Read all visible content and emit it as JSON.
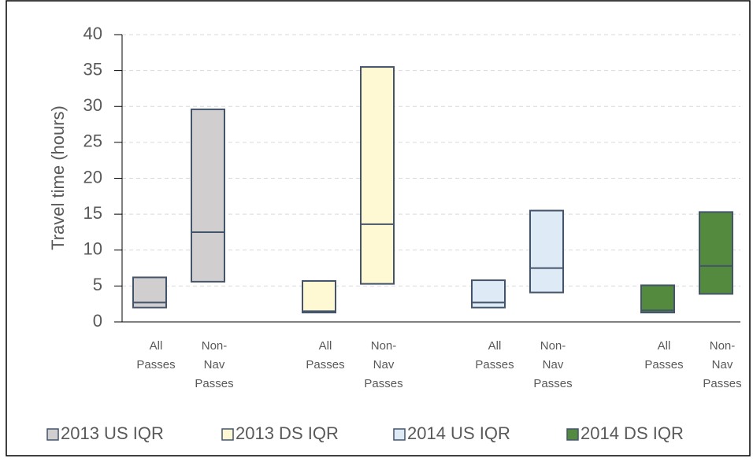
{
  "chart_data": {
    "type": "floating-box",
    "y_label": "Travel time (hours)",
    "categories": [
      "All Passes",
      "Non-Nav Passes"
    ],
    "ylim": [
      0,
      40
    ],
    "yticks": [
      0,
      5,
      10,
      15,
      20,
      25,
      30,
      35,
      40
    ],
    "grid": true,
    "legend": "bottom",
    "series": [
      {
        "name": "2013 US IQR",
        "color": "#d0cece",
        "q1": [
          2.0,
          5.6
        ],
        "median": [
          2.7,
          12.5
        ],
        "q3": [
          6.2,
          29.6
        ]
      },
      {
        "name": "2013 DS IQR",
        "color": "#fff9d3",
        "q1": [
          1.3,
          5.3
        ],
        "median": [
          1.5,
          13.6
        ],
        "q3": [
          5.7,
          35.5
        ]
      },
      {
        "name": "2014 US IQR",
        "color": "#deebf7",
        "q1": [
          2.0,
          4.1
        ],
        "median": [
          2.7,
          7.5
        ],
        "q3": [
          5.8,
          15.5
        ]
      },
      {
        "name": "2014 DS IQR",
        "color": "#548a3e",
        "q1": [
          1.3,
          3.9
        ],
        "median": [
          1.6,
          7.8
        ],
        "q3": [
          5.1,
          15.3
        ]
      }
    ]
  }
}
